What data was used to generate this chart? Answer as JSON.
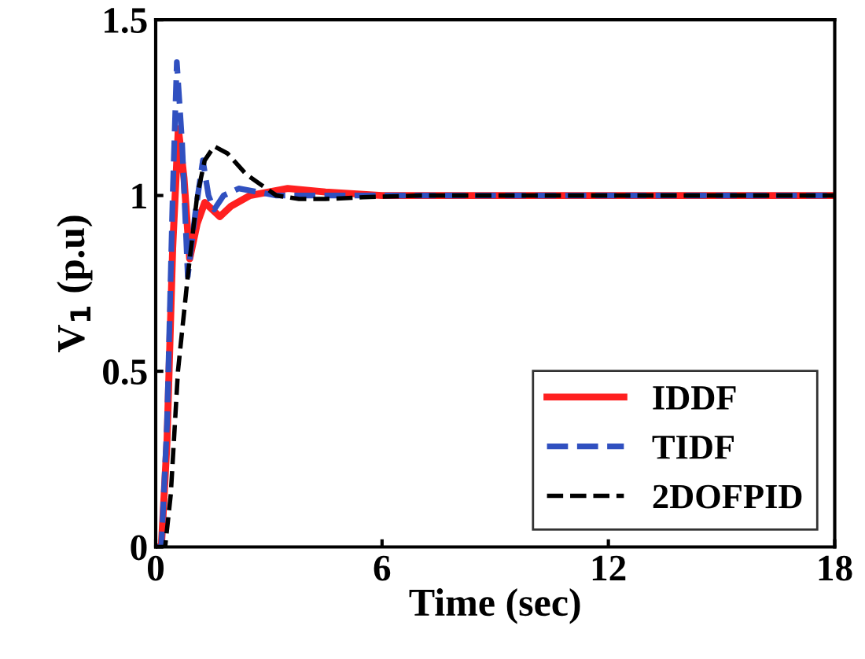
{
  "chart_data": {
    "type": "line",
    "xlabel": "Time (sec)",
    "ylabel": "V$_{1}$ (p.u)",
    "xlim": [
      0,
      18
    ],
    "ylim": [
      0,
      1.5
    ],
    "xticks": [
      0,
      6,
      12,
      18
    ],
    "yticks": [
      0,
      0.5,
      1,
      1.5
    ],
    "grid": false,
    "legend": "bottom right",
    "series": [
      {
        "name": "IDDF",
        "color": "#ff2020",
        "line_style": "solid",
        "x": [
          0,
          0.15,
          0.3,
          0.45,
          0.6,
          0.75,
          0.9,
          1.1,
          1.3,
          1.5,
          1.7,
          2.0,
          2.5,
          3.0,
          3.5,
          4.5,
          6,
          7,
          18
        ],
        "values": [
          0,
          0,
          0.3,
          0.85,
          1.19,
          1.05,
          0.82,
          0.92,
          0.98,
          0.96,
          0.94,
          0.97,
          1.0,
          1.01,
          1.02,
          1.01,
          1.0,
          1.0,
          1.0
        ]
      },
      {
        "name": "TIDF",
        "color": "#3050c0",
        "line_style": "dashed",
        "x": [
          0,
          0.15,
          0.3,
          0.45,
          0.56,
          0.7,
          0.85,
          1.05,
          1.25,
          1.4,
          1.55,
          1.8,
          2.2,
          2.7,
          3.2,
          4,
          6,
          18
        ],
        "values": [
          0,
          0,
          0.35,
          1.0,
          1.38,
          1.15,
          0.77,
          0.95,
          1.1,
          1.0,
          0.96,
          1.0,
          1.02,
          1.01,
          1.0,
          1.0,
          1.0,
          1.0
        ]
      },
      {
        "name": "2DOFPID",
        "color": "#000000",
        "line_style": "dashed",
        "x": [
          0,
          0.25,
          0.4,
          0.59,
          0.86,
          1.1,
          1.3,
          1.55,
          1.9,
          2.4,
          2.8,
          3.2,
          3.8,
          4.5,
          5.5,
          7,
          18
        ],
        "values": [
          0,
          0,
          0.15,
          0.5,
          0.78,
          1.0,
          1.1,
          1.14,
          1.12,
          1.06,
          1.03,
          1.0,
          0.99,
          0.99,
          0.995,
          1.0,
          1.0
        ]
      }
    ]
  }
}
